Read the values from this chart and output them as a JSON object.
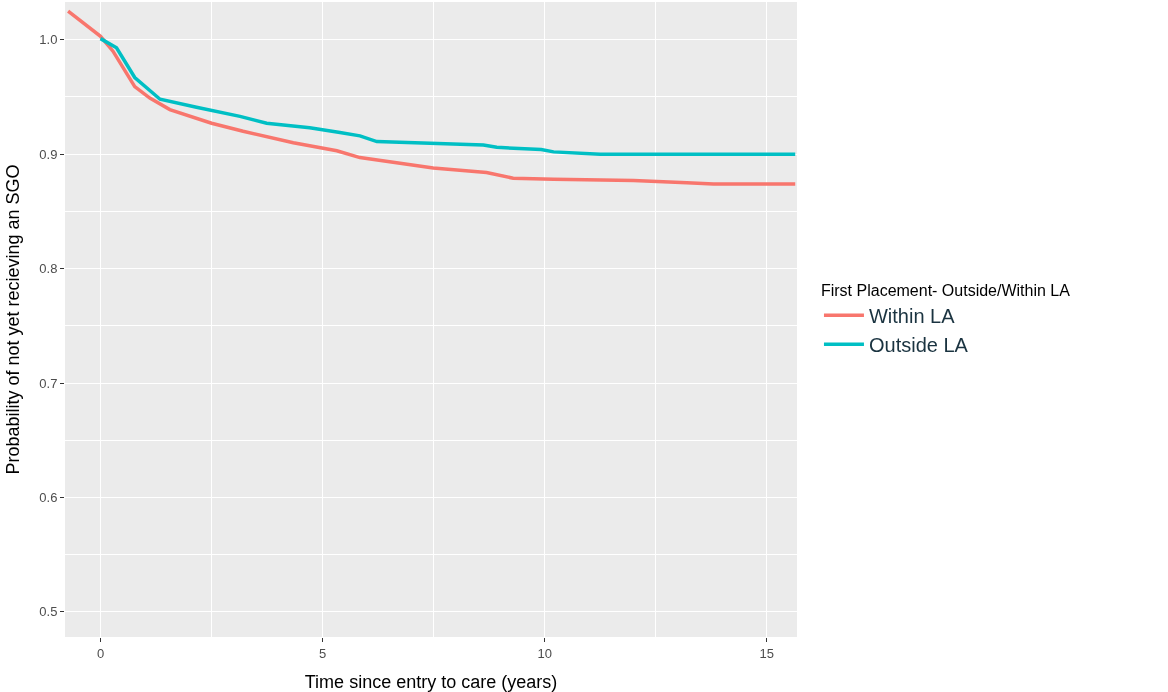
{
  "chart_data": {
    "type": "line",
    "xlabel": "Time since entry to care (years)",
    "ylabel": "Probability of not yet recieving an SGO",
    "legend_title": "First Placement- Outside/Within LA",
    "legend": "right",
    "grid": true,
    "xlim": [
      -0.8,
      15.68
    ],
    "ylim": [
      0.478,
      1.033
    ],
    "xticks": [
      0,
      5,
      10,
      15
    ],
    "yticks": [
      0.5,
      0.6,
      0.7,
      0.8,
      0.9,
      {
        "value": 1,
        "label": "1.0"
      }
    ],
    "series": [
      {
        "name": "Within LA",
        "color": "#f8766d",
        "x": [
          -0.73,
          0,
          0.28,
          0.77,
          1.11,
          1.56,
          2.5,
          3.21,
          4.34,
          5.32,
          5.84,
          7.49,
          8.69,
          9.29,
          10.2,
          12.0,
          13.2,
          13.8,
          15.64
        ],
        "values": [
          1.025,
          1.003,
          0.99,
          0.959,
          0.949,
          0.939,
          0.927,
          0.92,
          0.91,
          0.903,
          0.897,
          0.888,
          0.884,
          0.879,
          0.878,
          0.877,
          0.875,
          0.874,
          0.874
        ]
      },
      {
        "name": "Outside LA",
        "color": "#00bfc4",
        "x": [
          0,
          0.36,
          0.77,
          1.34,
          2.16,
          3.14,
          3.74,
          4.71,
          5.39,
          5.84,
          6.22,
          8.62,
          8.92,
          9.92,
          10.2,
          11.25,
          11.7,
          15.64
        ],
        "values": [
          1.001,
          0.993,
          0.967,
          0.948,
          0.941,
          0.933,
          0.927,
          0.923,
          0.919,
          0.916,
          0.911,
          0.908,
          0.906,
          0.904,
          0.902,
          0.9,
          0.9,
          0.9
        ]
      }
    ]
  }
}
